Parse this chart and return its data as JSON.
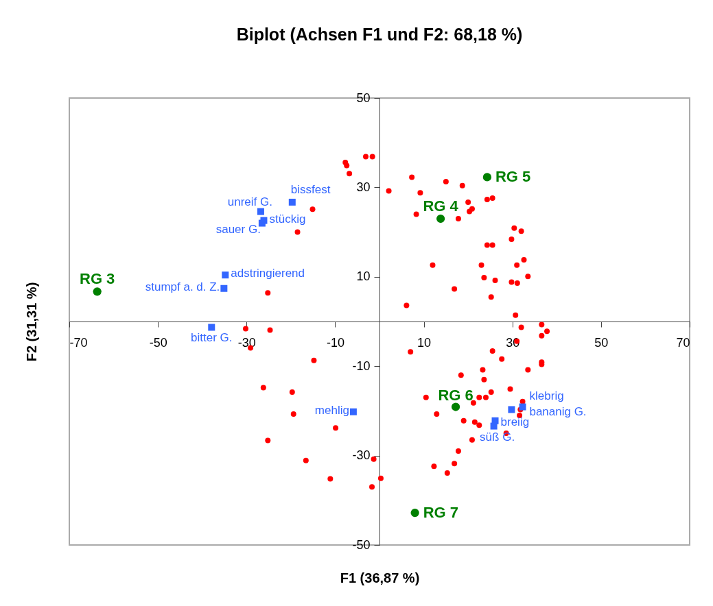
{
  "chart_data": {
    "type": "scatter",
    "title": "Biplot (Achsen F1 und F2: 68,18 %)",
    "xlabel": "F1 (36,87 %)",
    "ylabel": "F2 (31,31 %)",
    "xlim": [
      -70,
      70
    ],
    "xticks": [
      -70,
      -50,
      -30,
      -10,
      10,
      30,
      50,
      70
    ],
    "ylim": [
      -50,
      50
    ],
    "yticks": [
      -50,
      -30,
      -10,
      10,
      30,
      50
    ],
    "series": [
      {
        "color": "#ff0000",
        "marker": "circle",
        "x": [
          -7.7,
          -7.4,
          -6.8,
          -3.1,
          -1.6,
          2.1,
          -15.1,
          -18.5,
          -25.2,
          -30.2,
          -24.7,
          7.3,
          9.2,
          15.0,
          18.7,
          20.0,
          20.9,
          20.3,
          24.3,
          25.5,
          8.3,
          17.8,
          30.4,
          32.0,
          29.8,
          24.3,
          25.5,
          32.6,
          12.0,
          23.0,
          31.0,
          33.5,
          23.6,
          26.1,
          29.8,
          31.1,
          16.9,
          25.2,
          6.1,
          30.7,
          32.0,
          36.6,
          37.8,
          36.6,
          31.0,
          7.0,
          25.5,
          27.6,
          36.6,
          36.6,
          33.5,
          23.3,
          18.4,
          23.6,
          29.5,
          25.2,
          10.5,
          22.5,
          24.0,
          21.2,
          32.3,
          31.8,
          31.6,
          12.9,
          19.0,
          21.5,
          22.5,
          28.6,
          20.9,
          17.8,
          12.3,
          16.9,
          15.3,
          -1.3,
          0.3,
          -1.7,
          -29.1,
          -14.8,
          -26.2,
          -19.7,
          -19.4,
          -9.9,
          -25.2,
          -16.6,
          -11.1
        ],
        "values": [
          35.6,
          34.9,
          33.1,
          36.9,
          36.9,
          29.2,
          25.1,
          20.0,
          6.4,
          -1.6,
          -1.9,
          32.3,
          28.8,
          31.3,
          30.4,
          26.7,
          25.2,
          24.6,
          27.3,
          27.6,
          24.0,
          23.0,
          20.9,
          20.2,
          18.4,
          17.1,
          17.1,
          13.8,
          12.6,
          12.6,
          12.6,
          10.1,
          9.8,
          9.2,
          8.8,
          8.6,
          7.3,
          5.5,
          3.6,
          1.4,
          -1.3,
          -0.7,
          -2.2,
          -3.2,
          -4.4,
          -6.8,
          -6.6,
          -8.4,
          -9.1,
          -9.6,
          -10.8,
          -10.8,
          -12.0,
          -13.0,
          -15.1,
          -15.8,
          -17.0,
          -17.0,
          -17.0,
          -18.2,
          -17.9,
          -19.7,
          -21.0,
          -20.7,
          -22.2,
          -22.5,
          -23.2,
          -25.0,
          -26.5,
          -29.0,
          -32.4,
          -31.8,
          -33.9,
          -30.8,
          -35.1,
          -37.0,
          -5.9,
          -8.7,
          -14.8,
          -15.8,
          -20.7,
          -23.8,
          -26.6,
          -31.1,
          -35.2
        ]
      },
      {
        "color": "#3366ff",
        "marker": "square",
        "x": [
          -19.7,
          -26.8,
          -26.1,
          -26.5,
          -34.8,
          -35.1,
          -37.9,
          -5.9,
          32.3,
          29.8,
          26.1,
          25.8
        ],
        "values": [
          26.7,
          24.6,
          22.6,
          22.0,
          10.4,
          7.4,
          -1.3,
          -20.2,
          -19.1,
          -19.7,
          -22.2,
          -23.4
        ],
        "value_labels": [
          "bissfest",
          "unreif G.",
          "stückig",
          "sauer G.",
          "adstringierend",
          "stumpf a. d. Z.",
          "bitter G.",
          "mehlig",
          "klebrig",
          "bananig G.",
          "breiig",
          "süß G."
        ]
      },
      {
        "color": "#008000",
        "marker": "circle",
        "x": [
          -63.7,
          13.8,
          24.3,
          17.2,
          8.0
        ],
        "values": [
          6.7,
          23.0,
          32.3,
          -19.1,
          -42.8
        ],
        "value_labels": [
          "RG 3",
          "RG 4",
          "RG 5",
          "RG 6",
          "RG 7"
        ]
      }
    ]
  }
}
